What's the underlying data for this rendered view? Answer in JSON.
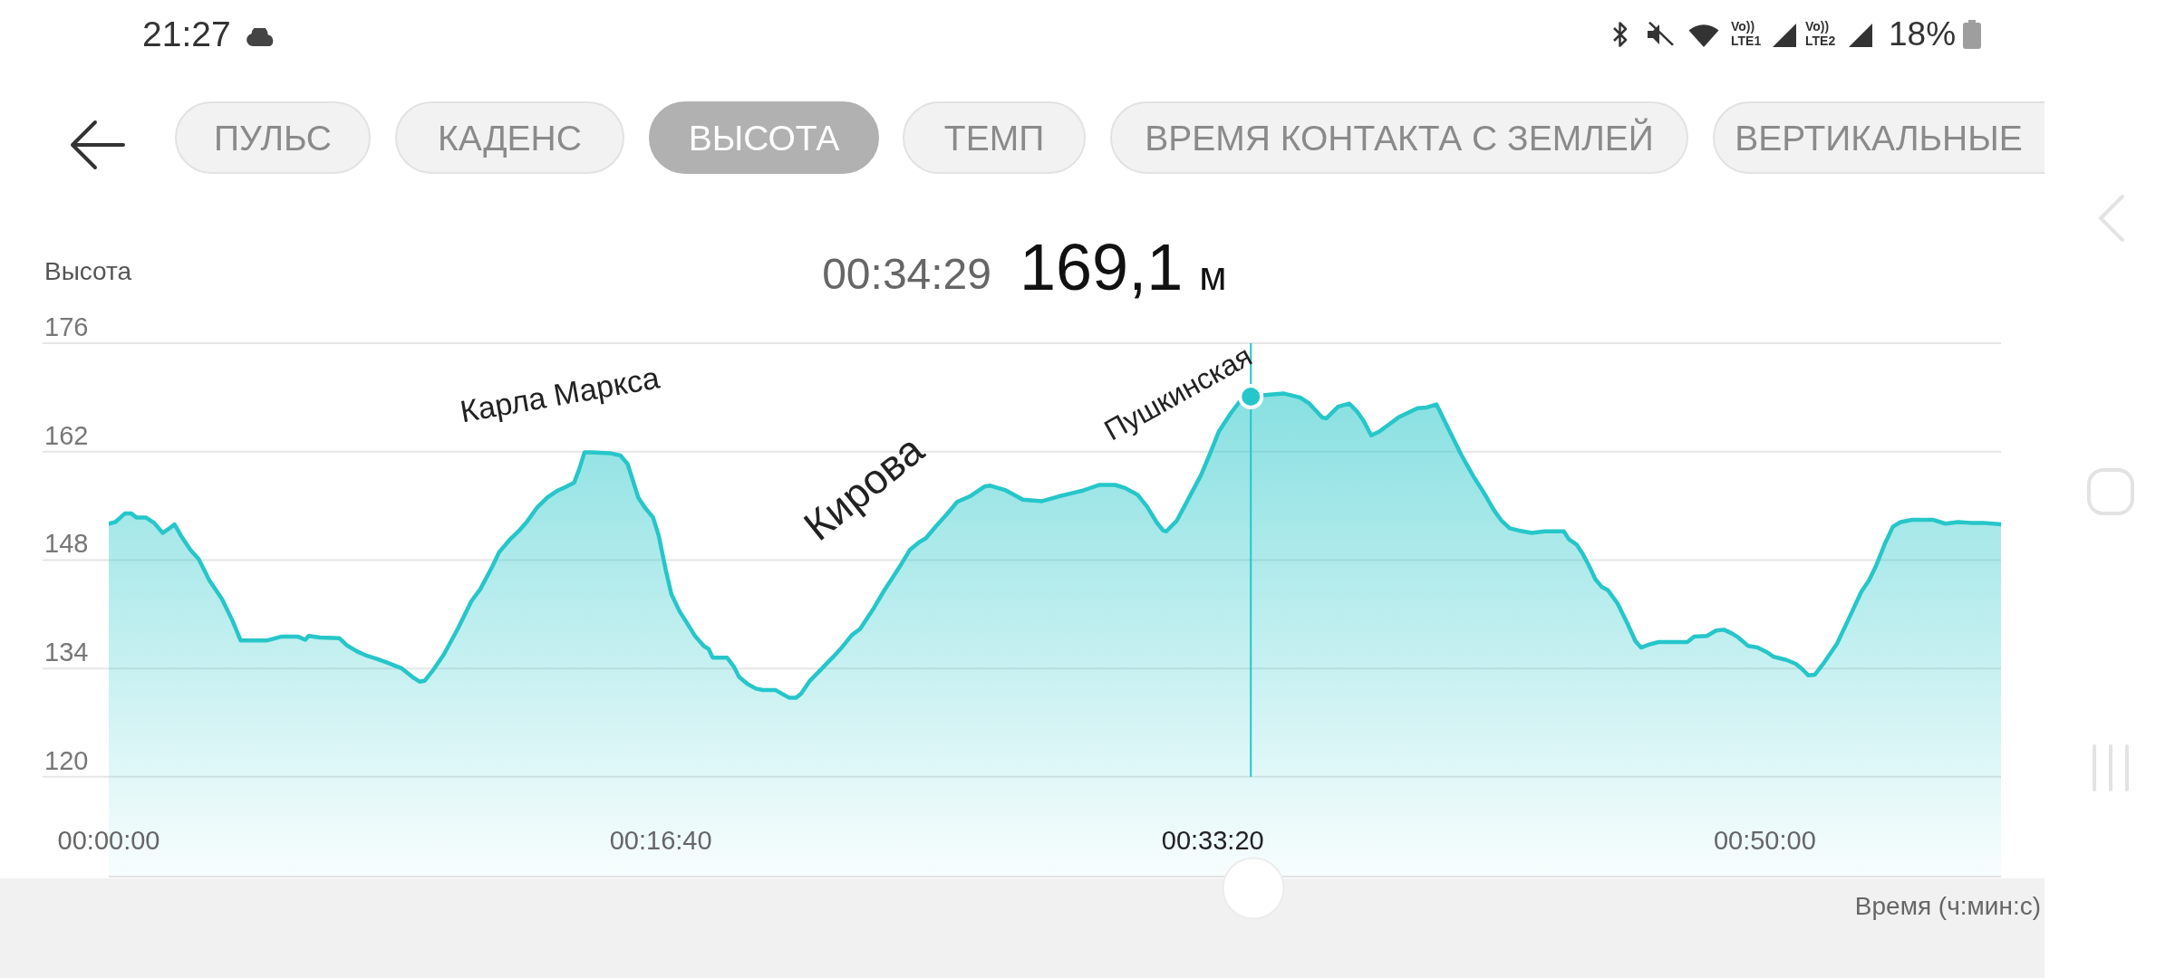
{
  "chart_data": {
    "type": "area",
    "title": "00:34:29",
    "subtitle": "169,1 м",
    "xlabel": "Время (ч:мин:с)",
    "ylabel": "Высота",
    "xlim": [
      0,
      0.9522
    ],
    "xticks": [
      {
        "value": 0,
        "label": "00:00:00"
      },
      {
        "value": 0.27778,
        "label": "00:16:40"
      },
      {
        "value": 0.55556,
        "label": "00:33:20"
      },
      {
        "value": 0.83333,
        "label": "00:50:00"
      }
    ],
    "ylim": [
      107,
      176
    ],
    "yticks": [
      120,
      134,
      148,
      162,
      176
    ],
    "grid": "y",
    "legend": false,
    "ref_lines": [
      {
        "axis": "x",
        "value": 0.5747,
        "color": "#26c6c9"
      }
    ],
    "annotations": [
      "21:27",
      "Vo))",
      "LTE1",
      "Vo))",
      "LTE2",
      "18%",
      "ПУЛЬС",
      "КАДЕНС",
      "ВЫСОТА",
      "ТЕМП",
      "ВРЕМЯ КОНТАКТА С ЗЕМЛЕЙ",
      "ВЕРТИКАЛЬНЫЕ",
      "Карла Маркса",
      "Кирова",
      "Пушкинская"
    ],
    "series": [
      {
        "type": "area",
        "color": "#26c6c9",
        "x": [
          0,
          0.0033,
          0.0081,
          0.0114,
          0.0139,
          0.0186,
          0.0228,
          0.0272,
          0.03,
          0.0331,
          0.0367,
          0.0411,
          0.0453,
          0.0506,
          0.0569,
          0.0622,
          0.0664,
          0.0794,
          0.0867,
          0.0953,
          0.0989,
          0.1006,
          0.1064,
          0.1161,
          0.1197,
          0.125,
          0.1303,
          0.1353,
          0.1406,
          0.1475,
          0.1528,
          0.1564,
          0.1589,
          0.1633,
          0.1686,
          0.1756,
          0.1825,
          0.1869,
          0.1931,
          0.1964,
          0.2017,
          0.2069,
          0.2106,
          0.2156,
          0.2208,
          0.2261,
          0.2297,
          0.2342,
          0.2367,
          0.2394,
          0.2425,
          0.2522,
          0.2575,
          0.2611,
          0.2636,
          0.2664,
          0.2697,
          0.2739,
          0.2767,
          0.2803,
          0.2831,
          0.2872,
          0.295,
          0.2994,
          0.3019,
          0.3039,
          0.3111,
          0.3144,
          0.3172,
          0.3214,
          0.3256,
          0.3292,
          0.3356,
          0.3389,
          0.3425,
          0.3458,
          0.3483,
          0.3528,
          0.3589,
          0.3642,
          0.3692,
          0.3739,
          0.3781,
          0.385,
          0.3903,
          0.3936,
          0.3989,
          0.4031,
          0.4078,
          0.4111,
          0.4164,
          0.4217,
          0.4269,
          0.4339,
          0.4408,
          0.4436,
          0.4514,
          0.46,
          0.4697,
          0.4778,
          0.4842,
          0.4906,
          0.4928,
          0.4986,
          0.5064,
          0.5114,
          0.5178,
          0.5225,
          0.5272,
          0.5306,
          0.5322,
          0.5375,
          0.5433,
          0.5497,
          0.5544,
          0.5586,
          0.5642,
          0.5689,
          0.5747,
          0.5817,
          0.5914,
          0.5994,
          0.6042,
          0.6106,
          0.6128,
          0.6186,
          0.6242,
          0.6281,
          0.6314,
          0.6353,
          0.6394,
          0.6442,
          0.6489,
          0.6536,
          0.6586,
          0.6633,
          0.6681,
          0.6744,
          0.6808,
          0.6872,
          0.6922,
          0.6969,
          0.7008,
          0.705,
          0.7097,
          0.7161,
          0.7225,
          0.7322,
          0.7347,
          0.7386,
          0.7417,
          0.745,
          0.7481,
          0.7514,
          0.7544,
          0.7592,
          0.7642,
          0.7683,
          0.7711,
          0.7753,
          0.78,
          0.7944,
          0.7978,
          0.8042,
          0.8089,
          0.8128,
          0.8169,
          0.82,
          0.825,
          0.8297,
          0.8344,
          0.8378,
          0.8442,
          0.8489,
          0.8522,
          0.8553,
          0.8586,
          0.8633,
          0.8697,
          0.8761,
          0.8819,
          0.8858,
          0.8894,
          0.8936,
          0.8978,
          0.9017,
          0.9075,
          0.9178,
          0.9242,
          0.9306,
          0.9369,
          0.9433,
          0.9522
        ],
        "values": [
          152.7,
          152.9,
          154.0,
          154.0,
          153.5,
          153.5,
          152.8,
          151.5,
          152.0,
          152.6,
          151.0,
          149.3,
          148.1,
          145.4,
          143.0,
          140.2,
          137.6,
          137.6,
          138.1,
          138.1,
          137.7,
          138.2,
          138.0,
          137.9,
          137.0,
          136.2,
          135.6,
          135.2,
          134.7,
          134.0,
          132.9,
          132.3,
          132.4,
          133.8,
          135.8,
          139.1,
          142.7,
          144.2,
          147.2,
          149.0,
          150.6,
          151.9,
          153.0,
          154.8,
          156.1,
          157.0,
          157.4,
          158.0,
          159.7,
          161.9,
          161.9,
          161.8,
          161.5,
          160.4,
          158.4,
          156.1,
          154.8,
          153.5,
          151.2,
          146.7,
          143.6,
          141.4,
          138.2,
          136.9,
          136.5,
          135.4,
          135.4,
          134.3,
          132.9,
          132.0,
          131.4,
          131.2,
          131.2,
          130.7,
          130.2,
          130.2,
          130.7,
          132.4,
          134.0,
          135.4,
          136.8,
          138.3,
          139.1,
          141.8,
          144.1,
          145.4,
          147.5,
          149.3,
          150.3,
          150.8,
          152.4,
          153.9,
          155.5,
          156.3,
          157.5,
          157.6,
          157.0,
          155.8,
          155.6,
          156.2,
          156.6,
          157.0,
          157.2,
          157.7,
          157.7,
          157.3,
          156.4,
          154.9,
          152.9,
          151.8,
          151.7,
          153.1,
          155.9,
          159.0,
          161.9,
          164.6,
          166.8,
          168.4,
          169.1,
          169.3,
          169.5,
          169.0,
          168.2,
          166.4,
          166.3,
          167.8,
          168.2,
          167.2,
          166.0,
          164.1,
          164.6,
          165.5,
          166.4,
          167.0,
          167.6,
          167.7,
          168.1,
          164.8,
          161.5,
          158.6,
          156.6,
          154.5,
          153.1,
          152.1,
          151.8,
          151.5,
          151.7,
          151.7,
          150.7,
          150.0,
          148.8,
          147.2,
          145.5,
          144.5,
          144.1,
          142.4,
          139.8,
          137.5,
          136.7,
          137.1,
          137.4,
          137.4,
          138.1,
          138.2,
          138.9,
          139.0,
          138.5,
          138.0,
          136.9,
          136.7,
          136.1,
          135.5,
          135.1,
          134.6,
          133.9,
          133.1,
          133.2,
          134.8,
          137.2,
          140.7,
          143.9,
          145.4,
          147.3,
          150.0,
          152.3,
          152.9,
          153.2,
          153.2,
          152.7,
          152.9,
          152.8,
          152.8,
          152.6
        ]
      },
      {
        "type": "scatter",
        "color": "#26c6c9",
        "marker": "circle",
        "x": [
          0.5747
        ],
        "values": [
          169.1
        ]
      }
    ]
  }
}
